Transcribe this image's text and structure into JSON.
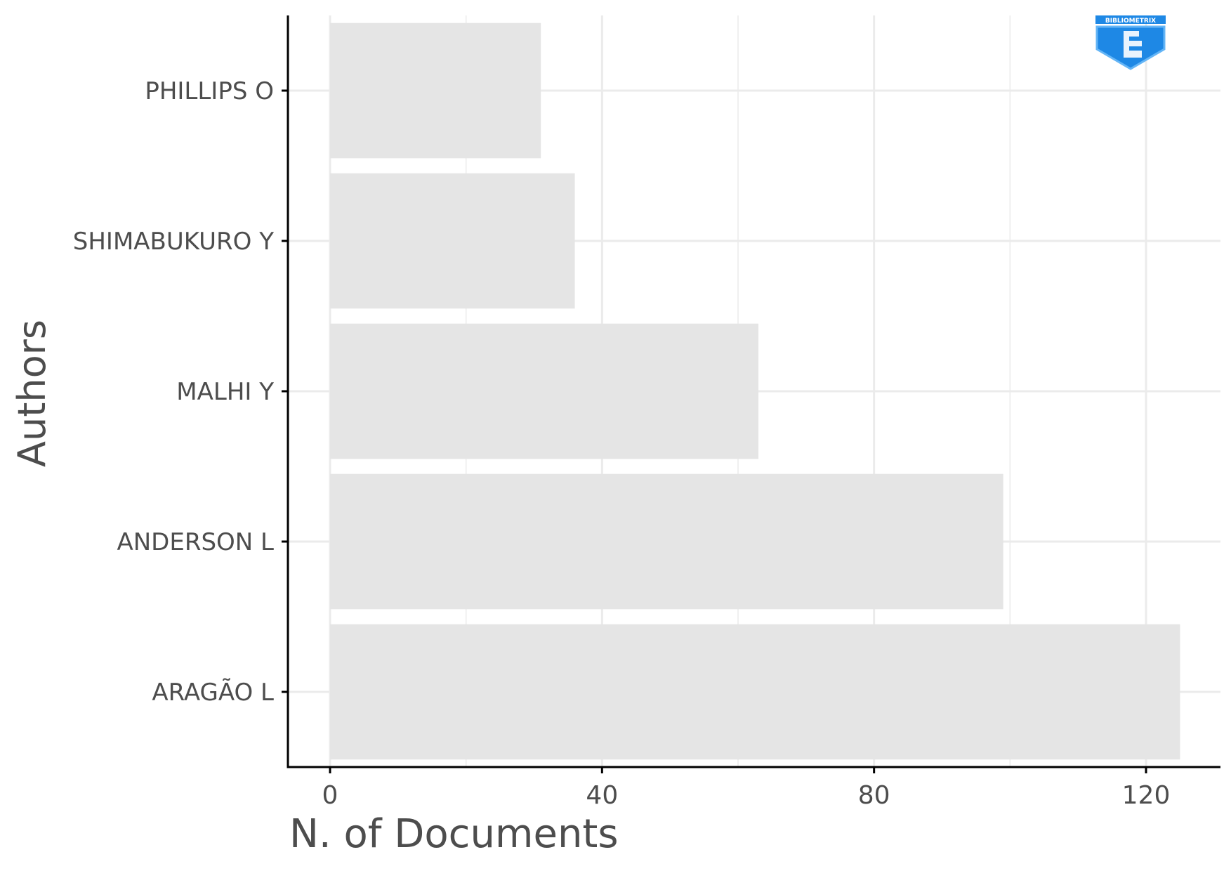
{
  "chart_data": {
    "type": "bar",
    "orientation": "horizontal",
    "categories": [
      "PHILLIPS O",
      "SHIMABUKURO Y",
      "MALHI Y",
      "ANDERSON L",
      "ARAGÃO L"
    ],
    "values": [
      31,
      36,
      63,
      99,
      125
    ],
    "xlabel": "N. of Documents",
    "ylabel": "Authors",
    "xlim": [
      0,
      131
    ],
    "x_ticks": [
      0,
      40,
      80,
      120
    ],
    "x_tick_labels": [
      "0",
      "40",
      "80",
      "120"
    ],
    "grid": true,
    "bar_color": "#e5e5e5",
    "grid_color": "#ebebeb",
    "axis_color": "#000000"
  },
  "logo": {
    "text": "BIBLIOMETRIX",
    "color": "#1e88e5"
  }
}
